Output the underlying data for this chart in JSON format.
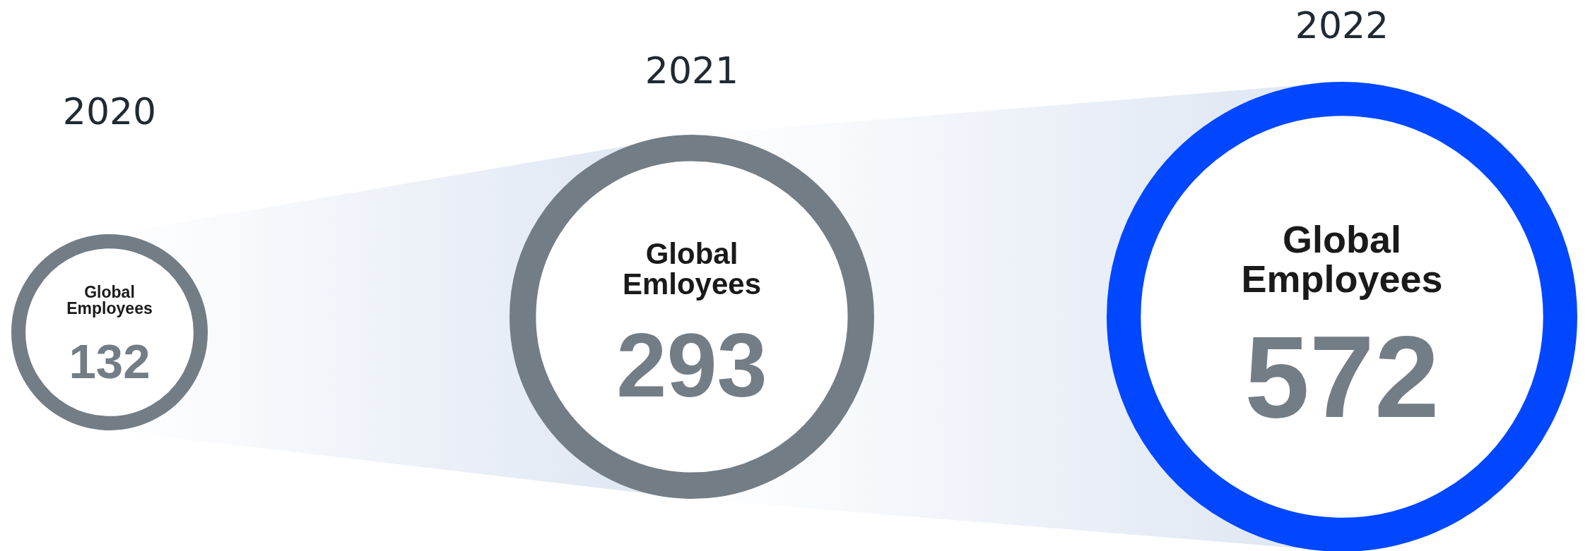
{
  "chart_data": {
    "type": "other",
    "categories": [
      "2020",
      "2021",
      "2022"
    ],
    "values": [
      132,
      293,
      572
    ],
    "data_labels": true,
    "colors": [
      "#737d85",
      "#737d85",
      "#0047ff"
    ],
    "annotations": [
      "Global Employees",
      "Global Emloyees",
      "Global Employees"
    ]
  }
}
